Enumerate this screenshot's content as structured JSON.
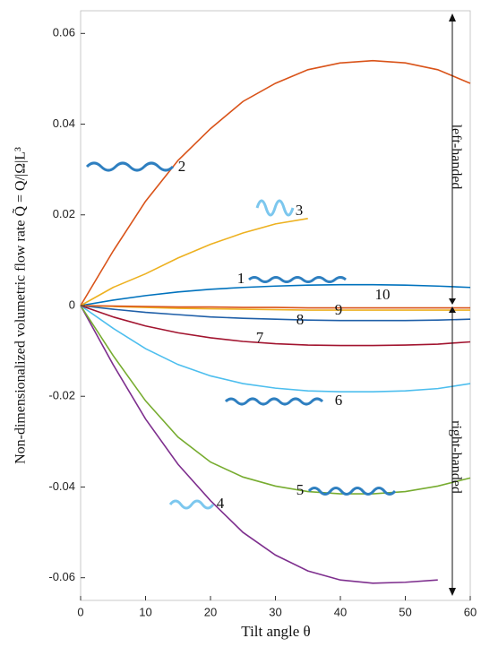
{
  "chart_data": {
    "type": "line",
    "x_label": "Tilt angle θ",
    "y_label": "Non-dimensionalized volumetric flow rate Q̃ = Q/|Ω|L³",
    "annotations": [
      "left-handed",
      "right-handed"
    ],
    "x": [
      0,
      5,
      10,
      15,
      20,
      25,
      30,
      35,
      40,
      45,
      50,
      55,
      60
    ],
    "xlim": [
      0,
      60
    ],
    "ylim": [
      -0.065,
      0.065
    ],
    "xticks": [
      0,
      10,
      20,
      30,
      40,
      50,
      60
    ],
    "yticks": [
      0.06,
      0.04,
      0.02,
      0,
      -0.02,
      -0.04,
      -0.06
    ],
    "grid": false,
    "series": [
      {
        "name": "1",
        "color": "#0072bd",
        "values": [
          0,
          0.0012,
          0.0022,
          0.003,
          0.0036,
          0.004,
          0.0043,
          0.0045,
          0.0046,
          0.0046,
          0.0045,
          0.0043,
          0.004
        ]
      },
      {
        "name": "2",
        "color": "#d95319",
        "values": [
          0,
          0.012,
          0.023,
          0.032,
          0.039,
          0.045,
          0.049,
          0.052,
          0.0535,
          0.054,
          0.0535,
          0.052,
          0.049
        ]
      },
      {
        "name": "3",
        "color": "#edb120",
        "values": [
          0,
          0.004,
          0.007,
          0.0105,
          0.0135,
          0.016,
          0.018,
          0.0192,
          null,
          null,
          null,
          null,
          null
        ]
      },
      {
        "name": "4",
        "color": "#7e2f8e",
        "values": [
          0,
          -0.013,
          -0.025,
          -0.035,
          -0.043,
          -0.05,
          -0.055,
          -0.0585,
          -0.0605,
          -0.0612,
          -0.061,
          -0.0605,
          null
        ]
      },
      {
        "name": "5",
        "color": "#77ac30",
        "values": [
          0,
          -0.011,
          -0.021,
          -0.029,
          -0.0345,
          -0.0378,
          -0.0398,
          -0.041,
          -0.0415,
          -0.0415,
          -0.041,
          -0.0398,
          -0.038
        ]
      },
      {
        "name": "6",
        "color": "#4dbeee",
        "values": [
          0,
          -0.005,
          -0.0095,
          -0.013,
          -0.0155,
          -0.0172,
          -0.0182,
          -0.0188,
          -0.019,
          -0.019,
          -0.0188,
          -0.0183,
          -0.0172
        ]
      },
      {
        "name": "7",
        "color": "#a2142f",
        "values": [
          0,
          -0.0025,
          -0.0045,
          -0.006,
          -0.0071,
          -0.0079,
          -0.0084,
          -0.0087,
          -0.0088,
          -0.0088,
          -0.0087,
          -0.0085,
          -0.008
        ]
      },
      {
        "name": "8",
        "color": "#1f5fa8",
        "values": [
          0,
          -0.0008,
          -0.0015,
          -0.002,
          -0.0025,
          -0.0028,
          -0.003,
          -0.0032,
          -0.0033,
          -0.0033,
          -0.0033,
          -0.0032,
          -0.003
        ]
      },
      {
        "name": "9",
        "color": "#edb120",
        "values": [
          0,
          -0.0002,
          -0.0004,
          -0.0006,
          -0.0007,
          -0.0008,
          -0.0009,
          -0.001,
          -0.001,
          -0.001,
          -0.001,
          -0.001,
          -0.001
        ]
      },
      {
        "name": "10",
        "color": "#d95319",
        "values": [
          0,
          -0.0001,
          -0.0002,
          -0.0003,
          -0.0003,
          -0.0004,
          -0.0004,
          -0.0005,
          -0.0005,
          -0.0005,
          -0.0005,
          -0.0005,
          -0.0005
        ]
      }
    ]
  }
}
